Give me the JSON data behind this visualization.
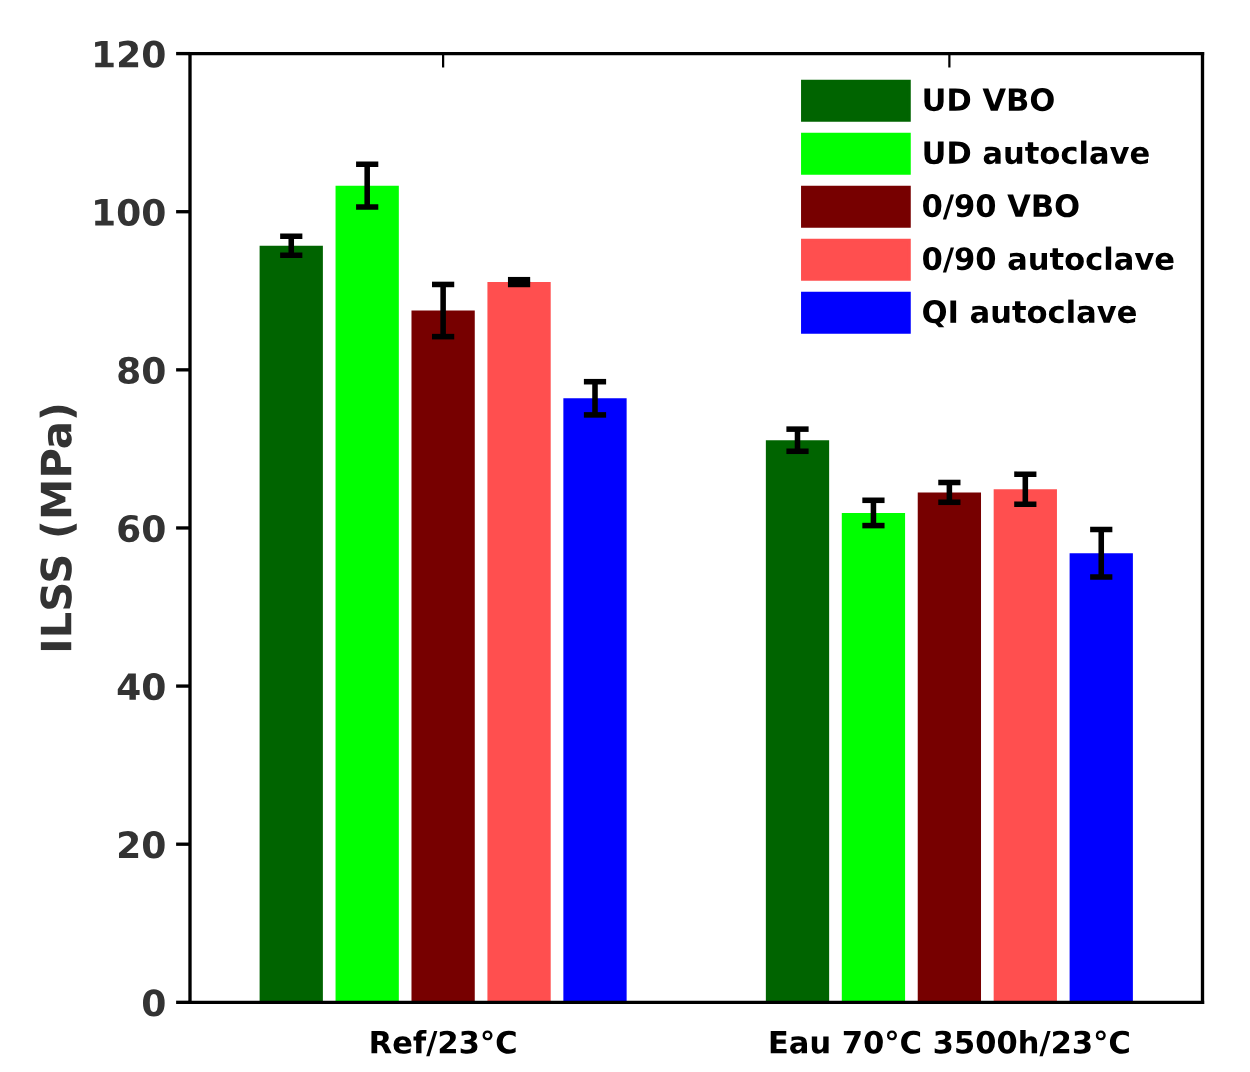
{
  "chart_data": {
    "type": "bar",
    "ylabel": "ILSS (MPa)",
    "categories": [
      "Ref/23°C",
      "Eau 70°C 3500h/23°C"
    ],
    "series": [
      {
        "name": "UD VBO",
        "color": "#006400",
        "values": [
          95.7,
          71.1
        ],
        "errors": [
          1.2,
          1.4
        ]
      },
      {
        "name": "UD autoclave",
        "color": "#00ff00",
        "values": [
          103.3,
          61.9
        ],
        "errors": [
          2.7,
          1.6
        ]
      },
      {
        "name": "0/90 VBO",
        "color": "#770000",
        "values": [
          87.5,
          64.5
        ],
        "errors": [
          3.3,
          1.25
        ]
      },
      {
        "name": "0/90 autoclave",
        "color": "#ff4f4f",
        "values": [
          91.1,
          64.9
        ],
        "errors": [
          0.3,
          1.9
        ]
      },
      {
        "name": "QI autoclave",
        "color": "#0000ff",
        "values": [
          76.4,
          56.8
        ],
        "errors": [
          2.1,
          3.0
        ]
      }
    ],
    "ylim": [
      0,
      120
    ],
    "yticks": [
      0,
      20,
      40,
      60,
      80,
      100,
      120
    ],
    "grid": false,
    "legend": "top right"
  }
}
